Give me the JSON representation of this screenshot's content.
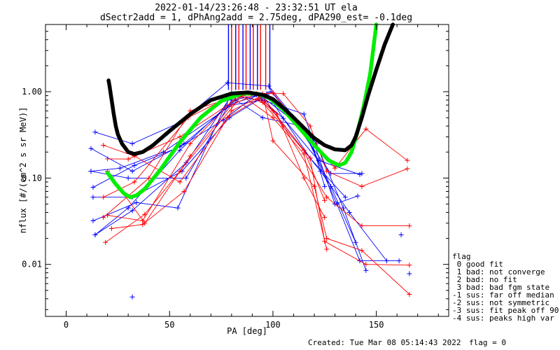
{
  "chart_data": {
    "type": "line",
    "title_line1": "2022-01-14/23:26:48 - 23:32:51 UT ela",
    "title_line2": "dSectr2add = 1, dPhAng2add = 2.75deg, dPA290_est=  -0.1deg",
    "xlabel": "PA [deg]",
    "ylabel": "nflux [#/(cm^2 s sr MeV)]",
    "xlim": [
      -10,
      185
    ],
    "ylim": [
      0.0025,
      6.0
    ],
    "y_scale": "log",
    "x_ticks": [
      0,
      50,
      100,
      150
    ],
    "x_tick_labels": [
      "0",
      "50",
      "100",
      "150"
    ],
    "y_ticks": [
      0.01,
      0.1,
      1.0
    ],
    "y_tick_labels": [
      "0.01",
      "0.10",
      "1.00"
    ],
    "colors": {
      "red": "#ff0000",
      "blue": "#0000ff",
      "green": "#00ee00",
      "black": "#000000"
    },
    "fit_black": {
      "x": [
        20.5,
        21,
        22,
        23,
        24,
        25,
        27,
        30,
        33,
        37,
        42,
        50,
        60,
        70,
        80,
        88,
        95,
        100,
        105,
        110,
        115,
        120,
        125,
        130,
        135,
        138,
        140,
        143,
        146,
        150,
        154,
        158
      ],
      "y": [
        1.35,
        1.15,
        0.8,
        0.55,
        0.4,
        0.32,
        0.25,
        0.2,
        0.19,
        0.2,
        0.24,
        0.35,
        0.55,
        0.8,
        0.95,
        0.98,
        0.92,
        0.82,
        0.65,
        0.5,
        0.38,
        0.29,
        0.24,
        0.215,
        0.21,
        0.24,
        0.3,
        0.5,
        0.9,
        1.8,
        3.5,
        6.0
      ]
    },
    "fit_green": {
      "x": [
        20,
        24,
        28,
        31,
        34,
        38,
        45,
        55,
        65,
        75,
        85,
        92,
        98,
        105,
        112,
        120,
        127,
        132,
        135,
        138,
        141,
        144,
        147,
        150
      ],
      "y": [
        0.115,
        0.085,
        0.066,
        0.06,
        0.063,
        0.075,
        0.12,
        0.26,
        0.5,
        0.78,
        0.95,
        0.95,
        0.85,
        0.62,
        0.4,
        0.24,
        0.16,
        0.14,
        0.15,
        0.2,
        0.35,
        0.7,
        1.6,
        6.0
      ]
    },
    "series_red": [
      {
        "x": [
          18,
          33,
          55,
          78,
          93,
          100,
          115,
          125
        ],
        "y": [
          0.24,
          0.18,
          0.09,
          0.5,
          0.83,
          0.6,
          0.21,
          0.055
        ]
      },
      {
        "x": [
          20,
          38,
          60,
          80,
          92,
          102,
          115,
          125
        ],
        "y": [
          0.12,
          0.03,
          0.18,
          0.7,
          0.95,
          0.55,
          0.1,
          0.035
        ]
      },
      {
        "x": [
          18,
          33,
          59,
          82,
          88,
          105,
          118,
          126,
          143,
          165
        ],
        "y": [
          0.06,
          0.09,
          0.5,
          0.95,
          0.95,
          0.95,
          0.4,
          0.12,
          0.08,
          0.128
        ]
      },
      {
        "x": [
          20,
          37,
          60,
          83,
          95,
          100,
          120,
          126,
          143,
          166
        ],
        "y": [
          0.037,
          0.032,
          0.25,
          0.9,
          0.95,
          0.27,
          0.08,
          0.02,
          0.0145,
          0.0045
        ]
      },
      {
        "x": [
          19,
          38,
          55,
          85,
          100,
          115,
          126
        ],
        "y": [
          0.018,
          0.038,
          0.12,
          0.9,
          0.5,
          0.19,
          0.015
        ]
      },
      {
        "x": [
          22,
          37,
          57,
          80,
          95,
          105,
          126,
          143,
          166
        ],
        "y": [
          0.026,
          0.029,
          0.07,
          0.6,
          0.91,
          0.4,
          0.06,
          0.028,
          0.028
        ]
      },
      {
        "x": [
          18,
          40,
          60,
          85,
          95,
          118,
          125,
          145,
          166
        ],
        "y": [
          0.035,
          0.1,
          0.6,
          0.92,
          0.75,
          0.17,
          0.0185,
          0.01,
          0.0098
        ]
      },
      {
        "x": [
          20,
          30,
          55,
          85,
          100,
          130,
          145,
          165
        ],
        "y": [
          0.167,
          0.166,
          0.3,
          0.9,
          0.97,
          0.13,
          0.37,
          0.16
        ]
      }
    ],
    "series_blue": [
      {
        "x": [
          14,
          32,
          55,
          78,
          98,
          118,
          125
        ],
        "y": [
          0.34,
          0.25,
          0.44,
          1.27,
          1.16,
          0.3,
          0.08
        ]
      },
      {
        "x": [
          13,
          33,
          55,
          76,
          92,
          105,
          122,
          142
        ],
        "y": [
          0.078,
          0.14,
          0.23,
          0.47,
          0.92,
          0.49,
          0.16,
          0.11
        ]
      },
      {
        "x": [
          13,
          32,
          56,
          79,
          95,
          110,
          128,
          143
        ],
        "y": [
          0.06,
          0.06,
          0.12,
          0.5,
          0.86,
          0.46,
          0.113,
          0.113
        ]
      },
      {
        "x": [
          13,
          34,
          54,
          80,
          98,
          114,
          131,
          142,
          161
        ],
        "y": [
          0.032,
          0.052,
          0.045,
          0.98,
          0.88,
          0.4,
          0.05,
          0.011,
          0.011
        ]
      },
      {
        "x": [
          14,
          32,
          58,
          80,
          96,
          123,
          137,
          155
        ],
        "y": [
          0.022,
          0.042,
          0.15,
          0.9,
          0.78,
          0.12,
          0.04,
          0.011
        ]
      },
      {
        "x": [
          12,
          26,
          47,
          80,
          95,
          115,
          130,
          141
        ],
        "y": [
          0.12,
          0.13,
          0.2,
          0.7,
          0.8,
          0.55,
          0.05,
          0.062
        ]
      },
      {
        "x": [
          14,
          30,
          55,
          78,
          99,
          121,
          134,
          145
        ],
        "y": [
          0.022,
          0.045,
          0.21,
          0.7,
          1.0,
          0.25,
          0.045,
          0.0085
        ]
      },
      {
        "x": [
          12,
          30,
          58,
          80,
          97,
          118,
          135
        ],
        "y": [
          0.12,
          0.1,
          0.1,
          0.8,
          0.95,
          0.17,
          0.06
        ]
      },
      {
        "x": [
          12,
          32,
          57,
          82,
          95,
          114,
          128,
          140
        ],
        "y": [
          0.22,
          0.12,
          0.25,
          0.8,
          0.5,
          0.4,
          0.08,
          0.018
        ]
      }
    ],
    "blue_extra_points": {
      "x": [
        32,
        162,
        166
      ],
      "y": [
        0.0042,
        0.022,
        0.0078
      ]
    },
    "top_spikes_blue_x": [
      78.5,
      82,
      85.5,
      89,
      92.5,
      98.5
    ],
    "top_spikes_red_x": [
      80,
      83.5,
      87,
      90.5,
      94,
      96.5
    ],
    "legend": {
      "title": "flag",
      "entries": [
        " 0 good fit",
        " 1 bad: not converge",
        " 2 bad: no fit",
        " 3 bad: bad fgm state",
        "-1 sus: far off median",
        "-2 sus: not symmetric",
        "-3 sus: fit peak off 90",
        "-4 sus: peaks high var"
      ]
    },
    "footer_created": "Created: Tue Mar 08 05:14:43 2022",
    "footer_flag": "flag = 0"
  }
}
